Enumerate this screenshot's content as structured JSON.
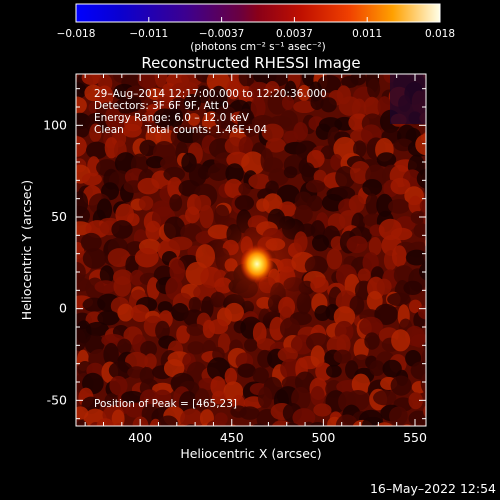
{
  "colorbar": {
    "tick_labels": [
      "−0.018",
      "−0.011",
      "−0.0037",
      "0.0037",
      "0.011",
      "0.018"
    ],
    "min": -0.018,
    "max": 0.018,
    "unit_label": "(photons cm⁻² s⁻¹ asec⁻²)"
  },
  "chart_data": {
    "type": "heatmap",
    "title": "Reconstructed RHESSI Image",
    "xlabel": "Heliocentric X (arcsec)",
    "ylabel": "Heliocentric Y (arcsec)",
    "xlim": [
      365,
      556
    ],
    "ylim": [
      -64,
      128
    ],
    "x_ticks": [
      400,
      450,
      500,
      550
    ],
    "y_ticks": [
      -50,
      0,
      50,
      100
    ],
    "peak": {
      "x": 465,
      "y": 23
    },
    "info_lines": [
      "29–Aug–2014 12:17:00.000 to 12:20:36.000",
      "Detectors: 3F 6F 9F, Att 0",
      "Energy Range: 6.0 – 12.0 keV"
    ],
    "clean_label": "Clean",
    "total_counts": "Total counts: 1.46E+04",
    "peak_label": "Position of Peak = [465,23]"
  },
  "footer": {
    "timestamp": "16–May–2022 12:54"
  }
}
